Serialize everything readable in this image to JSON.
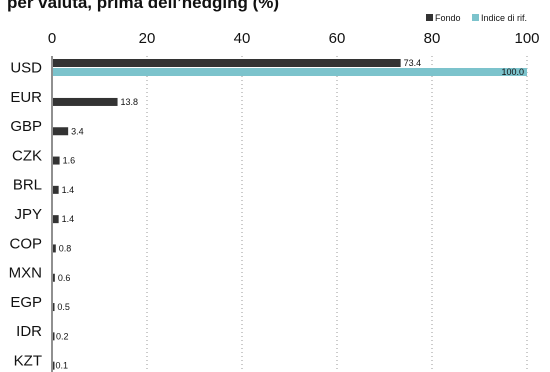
{
  "chart_data": {
    "type": "bar",
    "orientation": "horizontal",
    "title": "per valuta, prima dell’hedging (%)",
    "xlim": [
      0,
      100
    ],
    "xticks": [
      0,
      20,
      40,
      60,
      80,
      100
    ],
    "grid": "vertical dotted",
    "legend_position": "top-right",
    "categories": [
      "USD",
      "EUR",
      "GBP",
      "CZK",
      "BRL",
      "JPY",
      "COP",
      "MXN",
      "EGP",
      "IDR",
      "KZT"
    ],
    "series": [
      {
        "name": "Fondo",
        "color": "#333333",
        "values": [
          73.4,
          13.8,
          3.4,
          1.6,
          1.4,
          1.4,
          0.8,
          0.6,
          0.5,
          0.2,
          0.1
        ],
        "labels": [
          "73.4",
          "13.8",
          "3.4",
          "1.6",
          "1.4",
          "1.4",
          "0.8",
          "0.6",
          "0.5",
          "0.2",
          "0.1"
        ]
      },
      {
        "name": "Indice di rif.",
        "color": "#7cc3cc",
        "values": [
          100.0,
          null,
          null,
          null,
          null,
          null,
          null,
          null,
          null,
          null,
          null
        ],
        "labels": [
          "100.0",
          null,
          null,
          null,
          null,
          null,
          null,
          null,
          null,
          null,
          null
        ]
      }
    ]
  }
}
